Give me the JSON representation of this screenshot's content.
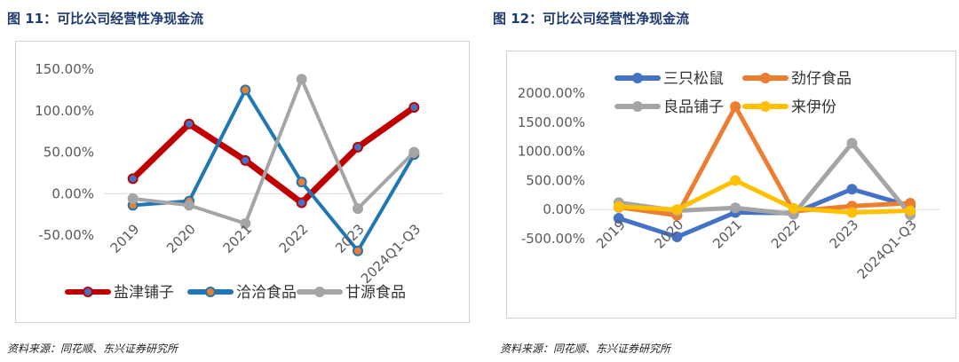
{
  "left": {
    "title": "图 11：可比公司经营性净现金流",
    "source": "资料来源：同花顺、东兴证券研究所"
  },
  "right": {
    "title": "图 12：可比公司经营性净现金流",
    "source": "资料来源：同花顺、东兴证券研究所"
  },
  "chart_data": [
    {
      "type": "line",
      "title": "",
      "categories": [
        "2019",
        "2020",
        "2021",
        "2022",
        "2023",
        "2024Q1-Q3"
      ],
      "y_ticks": [
        "150.00%",
        "100.00%",
        "50.00%",
        "0.00%",
        "-50.00%"
      ],
      "ylim": [
        -50,
        150
      ],
      "grid": false,
      "legend_position": "bottom",
      "series": [
        {
          "name": "盐津铺子",
          "color": "#c00000",
          "values": [
            18,
            84,
            40,
            -11,
            56,
            104
          ]
        },
        {
          "name": "洽洽食品",
          "color": "#1f77b4",
          "values": [
            -14,
            -9,
            125,
            14,
            -69,
            47
          ]
        },
        {
          "name": "甘源食品",
          "color": "#a5a5a5",
          "values": [
            -6,
            -14,
            -36,
            138,
            -18,
            50
          ]
        }
      ]
    },
    {
      "type": "line",
      "title": "",
      "categories": [
        "2019",
        "2020",
        "2021",
        "2022",
        "2023",
        "2024Q1-Q3"
      ],
      "y_ticks": [
        "2000.00%",
        "1500.00%",
        "1000.00%",
        "500.00%",
        "0.00%",
        "-500.00%"
      ],
      "ylim": [
        -500,
        2000
      ],
      "grid": false,
      "legend_position": "top",
      "series": [
        {
          "name": "三只松鼠",
          "color": "#4472c4",
          "values": [
            -150,
            -470,
            -50,
            -60,
            350,
            60
          ]
        },
        {
          "name": "劲仔食品",
          "color": "#ed7d31",
          "values": [
            40,
            -100,
            1770,
            -30,
            60,
            110
          ]
        },
        {
          "name": "良品铺子",
          "color": "#a5a5a5",
          "values": [
            120,
            -20,
            30,
            -80,
            1140,
            -90
          ]
        },
        {
          "name": "来伊份",
          "color": "#ffc000",
          "values": [
            50,
            0,
            500,
            20,
            -50,
            -20
          ]
        }
      ]
    }
  ]
}
